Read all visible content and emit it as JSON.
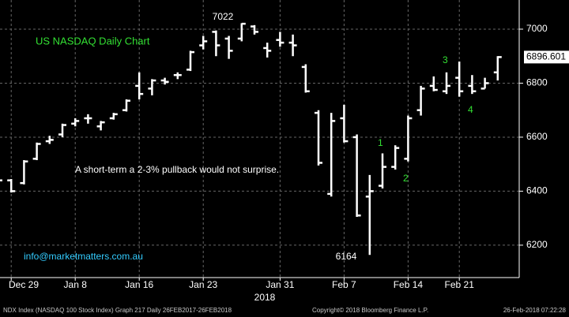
{
  "chart_data": {
    "type": "ohlc",
    "title": "US NASDAQ Daily Chart",
    "annotations": [
      "A short-term a 2-3% pullback would not surprise.",
      "info@marketmatters.com.au",
      "1",
      "2",
      "3",
      "4"
    ],
    "x_axis_label": "2018",
    "footer": [
      "NDX Index (NASDAQ 100 Stock Index) Graph 217  Daily 26FEB2017-26FEB2018",
      "Copyright© 2018 Bloomberg Finance L.P.",
      "26-Feb-2018 07:22:28"
    ],
    "categories": [
      null,
      "Dec 29",
      null,
      null,
      null,
      null,
      "Jan 8",
      null,
      null,
      null,
      null,
      "Jan 16",
      null,
      null,
      null,
      null,
      "Jan 23",
      null,
      null,
      null,
      null,
      null,
      "Jan 31",
      null,
      null,
      null,
      null,
      "Feb 7",
      null,
      null,
      null,
      null,
      "Feb 14",
      null,
      null,
      null,
      "Feb 21",
      null,
      null,
      null
    ],
    "color": "#ffffff",
    "open": [
      6445,
      6440,
      6430,
      6520,
      6585,
      6610,
      6650,
      6670,
      6640,
      6670,
      6700,
      6790,
      6780,
      6810,
      6830,
      6850,
      6940,
      6990,
      6965,
      6965,
      7010,
      6930,
      6960,
      6950,
      6860,
      6690,
      6390,
      6670,
      6600,
      6380,
      6420,
      6490,
      6520,
      6700,
      6790,
      6770,
      6820,
      6790,
      6780,
      6840
    ],
    "high": [
      6450,
      6445,
      6515,
      6580,
      6605,
      6650,
      6670,
      6685,
      6660,
      6690,
      6740,
      6840,
      6815,
      6820,
      6840,
      6920,
      6975,
      6995,
      6975,
      7022,
      7015,
      6950,
      6990,
      6980,
      6870,
      6700,
      6690,
      6720,
      6610,
      6460,
      6540,
      6570,
      6680,
      6790,
      6825,
      6840,
      6880,
      6830,
      6820,
      6900
    ],
    "low": [
      6430,
      6395,
      6425,
      6515,
      6575,
      6600,
      6640,
      6650,
      6625,
      6665,
      6695,
      6740,
      6755,
      6795,
      6815,
      6845,
      6925,
      6900,
      6890,
      6955,
      6980,
      6895,
      6935,
      6900,
      6765,
      6495,
      6380,
      6580,
      6305,
      6164,
      6410,
      6480,
      6510,
      6680,
      6770,
      6760,
      6750,
      6760,
      6780,
      6810
    ],
    "close": [
      6440,
      6400,
      6510,
      6575,
      6590,
      6645,
      6660,
      6670,
      6655,
      6685,
      6735,
      6760,
      6810,
      6805,
      6830,
      6915,
      6955,
      6940,
      6920,
      7020,
      6990,
      6920,
      6950,
      6940,
      6770,
      6505,
      6660,
      6585,
      6310,
      6400,
      6490,
      6560,
      6670,
      6780,
      6775,
      6790,
      6770,
      6770,
      6800,
      6896.601
    ],
    "ylim": [
      6080,
      7108
    ],
    "yticks": [
      6200,
      6400,
      6600,
      6800,
      7000
    ],
    "grid": true
  }
}
